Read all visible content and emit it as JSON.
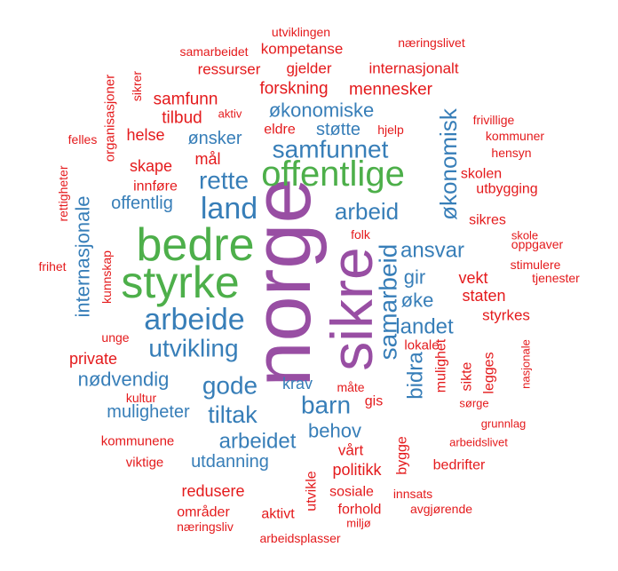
{
  "colors": {
    "purple": "#984ea3",
    "green": "#4daf4a",
    "blue": "#377eb8",
    "red": "#e41a1c"
  },
  "words": [
    {
      "text": "norge",
      "color": "purple"
    },
    {
      "text": "sikre",
      "color": "purple"
    },
    {
      "text": "bedre",
      "color": "green"
    },
    {
      "text": "styrke",
      "color": "green"
    },
    {
      "text": "offentlige",
      "color": "green"
    },
    {
      "text": "arbeide",
      "color": "blue"
    },
    {
      "text": "land",
      "color": "blue"
    },
    {
      "text": "samfunnet",
      "color": "blue"
    },
    {
      "text": "rette",
      "color": "blue"
    },
    {
      "text": "utvikling",
      "color": "blue"
    },
    {
      "text": "gode",
      "color": "blue"
    },
    {
      "text": "barn",
      "color": "blue"
    },
    {
      "text": "tiltak",
      "color": "blue"
    },
    {
      "text": "arbeidet",
      "color": "blue"
    },
    {
      "text": "samarbeid",
      "color": "blue"
    },
    {
      "text": "arbeid",
      "color": "blue"
    },
    {
      "text": "økonomisk",
      "color": "blue"
    },
    {
      "text": "økonomiske",
      "color": "blue"
    },
    {
      "text": "ansvar",
      "color": "blue"
    },
    {
      "text": "landet",
      "color": "blue"
    },
    {
      "text": "internasjonale",
      "color": "blue"
    },
    {
      "text": "muligheter",
      "color": "blue"
    },
    {
      "text": "nødvendig",
      "color": "blue"
    },
    {
      "text": "utdanning",
      "color": "blue"
    },
    {
      "text": "behov",
      "color": "blue"
    },
    {
      "text": "bidra",
      "color": "blue"
    },
    {
      "text": "gir",
      "color": "blue"
    },
    {
      "text": "øke",
      "color": "blue"
    },
    {
      "text": "støtte",
      "color": "blue"
    },
    {
      "text": "ønsker",
      "color": "blue"
    },
    {
      "text": "offentlig",
      "color": "blue"
    },
    {
      "text": "krav",
      "color": "blue"
    },
    {
      "text": "forskning",
      "color": "red"
    },
    {
      "text": "mennesker",
      "color": "red"
    },
    {
      "text": "samfunn",
      "color": "red"
    },
    {
      "text": "tilbud",
      "color": "red"
    },
    {
      "text": "helse",
      "color": "red"
    },
    {
      "text": "mål",
      "color": "red"
    },
    {
      "text": "skape",
      "color": "red"
    },
    {
      "text": "innføre",
      "color": "red"
    },
    {
      "text": "kompetanse",
      "color": "red"
    },
    {
      "text": "ressurser",
      "color": "red"
    },
    {
      "text": "gjelder",
      "color": "red"
    },
    {
      "text": "internasjonalt",
      "color": "red"
    },
    {
      "text": "eldre",
      "color": "red"
    },
    {
      "text": "hjelp",
      "color": "red"
    },
    {
      "text": "utviklingen",
      "color": "red"
    },
    {
      "text": "næringslivet",
      "color": "red"
    },
    {
      "text": "samarbeidet",
      "color": "red"
    },
    {
      "text": "organisasjoner",
      "color": "red"
    },
    {
      "text": "sikrer",
      "color": "red"
    },
    {
      "text": "aktiv",
      "color": "red"
    },
    {
      "text": "felles",
      "color": "red"
    },
    {
      "text": "rettigheter",
      "color": "red"
    },
    {
      "text": "frihet",
      "color": "red"
    },
    {
      "text": "kunnskap",
      "color": "red"
    },
    {
      "text": "unge",
      "color": "red"
    },
    {
      "text": "private",
      "color": "red"
    },
    {
      "text": "kultur",
      "color": "red"
    },
    {
      "text": "kommunene",
      "color": "red"
    },
    {
      "text": "viktige",
      "color": "red"
    },
    {
      "text": "redusere",
      "color": "red"
    },
    {
      "text": "områder",
      "color": "red"
    },
    {
      "text": "næringsliv",
      "color": "red"
    },
    {
      "text": "arbeidsplasser",
      "color": "red"
    },
    {
      "text": "aktivt",
      "color": "red"
    },
    {
      "text": "forhold",
      "color": "red"
    },
    {
      "text": "miljø",
      "color": "red"
    },
    {
      "text": "sosiale",
      "color": "red"
    },
    {
      "text": "innsats",
      "color": "red"
    },
    {
      "text": "avgjørende",
      "color": "red"
    },
    {
      "text": "politikk",
      "color": "red"
    },
    {
      "text": "vårt",
      "color": "red"
    },
    {
      "text": "utvikle",
      "color": "red"
    },
    {
      "text": "bygge",
      "color": "red"
    },
    {
      "text": "mulighet",
      "color": "red"
    },
    {
      "text": "sikte",
      "color": "red"
    },
    {
      "text": "legges",
      "color": "red"
    },
    {
      "text": "gis",
      "color": "red"
    },
    {
      "text": "måte",
      "color": "red"
    },
    {
      "text": "lokale",
      "color": "red"
    },
    {
      "text": "vekt",
      "color": "red"
    },
    {
      "text": "staten",
      "color": "red"
    },
    {
      "text": "styrkes",
      "color": "red"
    },
    {
      "text": "folk",
      "color": "red"
    },
    {
      "text": "sikres",
      "color": "red"
    },
    {
      "text": "skole",
      "color": "red"
    },
    {
      "text": "skolen",
      "color": "red"
    },
    {
      "text": "utbygging",
      "color": "red"
    },
    {
      "text": "frivillige",
      "color": "red"
    },
    {
      "text": "kommuner",
      "color": "red"
    },
    {
      "text": "hensyn",
      "color": "red"
    },
    {
      "text": "oppgaver",
      "color": "red"
    },
    {
      "text": "stimulere",
      "color": "red"
    },
    {
      "text": "tjenester",
      "color": "red"
    },
    {
      "text": "nasjonale",
      "color": "red"
    },
    {
      "text": "sørge",
      "color": "red"
    },
    {
      "text": "grunnlag",
      "color": "red"
    },
    {
      "text": "arbeidslivet",
      "color": "red"
    },
    {
      "text": "bedrifter",
      "color": "red"
    }
  ]
}
